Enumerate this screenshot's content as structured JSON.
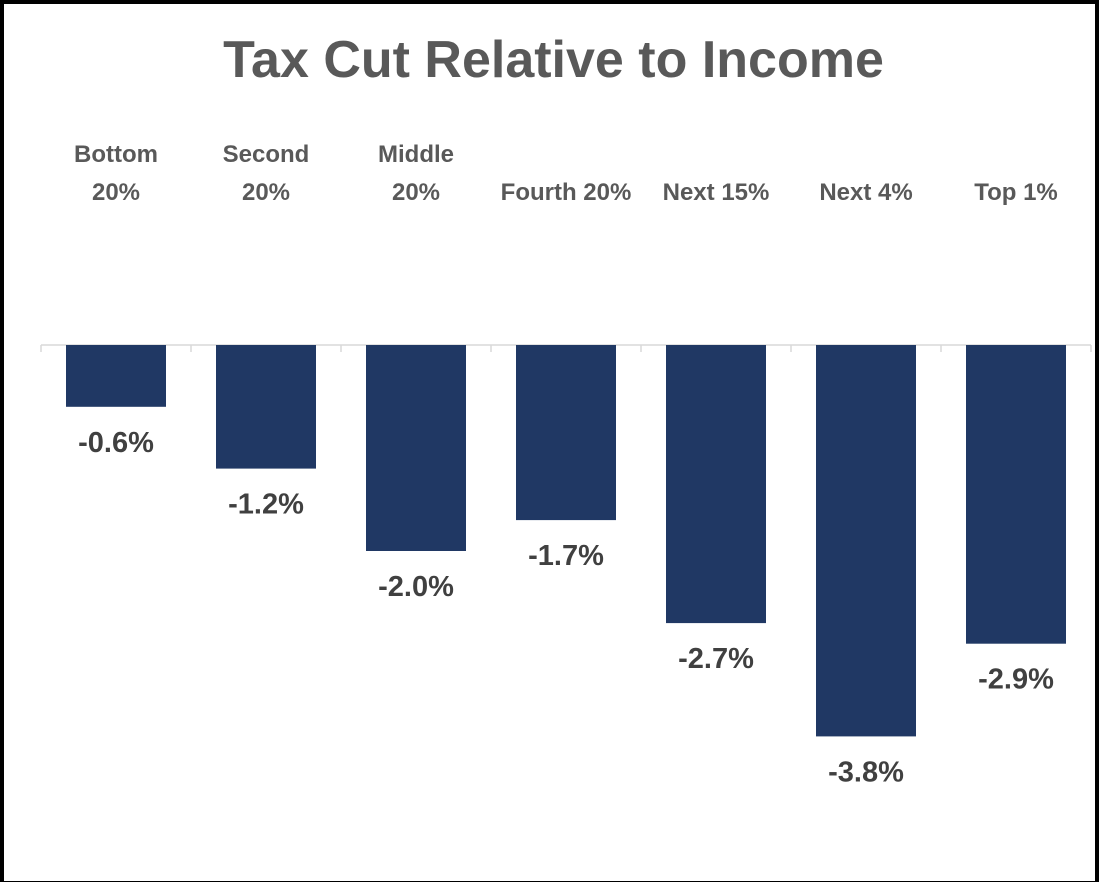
{
  "chart_data": {
    "type": "bar",
    "title": "Tax Cut Relative to Income",
    "categories": [
      [
        "Bottom",
        "20%"
      ],
      [
        "Second",
        "20%"
      ],
      [
        "Middle",
        "20%"
      ],
      [
        "Fourth 20%"
      ],
      [
        "Next 15%"
      ],
      [
        "Next 4%"
      ],
      [
        "Top 1%"
      ]
    ],
    "values": [
      -0.6,
      -1.2,
      -2.0,
      -1.7,
      -2.7,
      -3.8,
      -2.9
    ],
    "value_labels": [
      "-0.6%",
      "-1.2%",
      "-2.0%",
      "-1.7%",
      "-2.7%",
      "-3.8%",
      "-2.9%"
    ],
    "xlabel": "",
    "ylabel": "",
    "grid": false,
    "legend": "none",
    "bar_color": "#203864",
    "axis_color": "#d9d9d9",
    "text_color": "#595959"
  }
}
